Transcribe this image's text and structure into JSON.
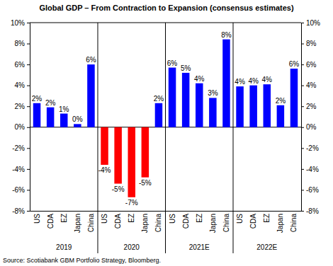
{
  "chart_data": {
    "type": "bar",
    "title": "Global GDP – From Contraction to Expansion (consensus estimates)",
    "source": "Source: Scotiabank GBM Portfolio Strategy, Bloomberg.",
    "categories": [
      "US",
      "CDA",
      "EZ",
      "Japan",
      "China",
      "US",
      "CDA",
      "EZ",
      "Japan",
      "China",
      "US",
      "CDA",
      "EZ",
      "Japan",
      "China",
      "US",
      "CDA",
      "EZ",
      "Japan",
      "China"
    ],
    "category_groups": [
      "2019",
      "2019",
      "2019",
      "2019",
      "2019",
      "2020",
      "2020",
      "2020",
      "2020",
      "2020",
      "2021E",
      "2021E",
      "2021E",
      "2021E",
      "2021E",
      "2022E",
      "2022E",
      "2022E",
      "2022E",
      "2022E"
    ],
    "values": [
      2.3,
      1.9,
      1.3,
      0.3,
      6.0,
      -3.6,
      -5.4,
      -6.7,
      -4.8,
      2.3,
      5.7,
      5.2,
      4.2,
      2.8,
      8.4,
      3.9,
      4.0,
      4.1,
      2.1,
      5.6
    ],
    "value_labels": [
      "2%",
      "2%",
      "1%",
      "0%",
      "6%",
      "-4%",
      "-5%",
      "-7%",
      "-5%",
      "2%",
      "6%",
      "5%",
      "4%",
      "3%",
      "8%",
      "4%",
      "4%",
      "4%",
      "2%",
      "6%"
    ],
    "colors": [
      "#0000ff",
      "#0000ff",
      "#0000ff",
      "#0000ff",
      "#0000ff",
      "#ff0000",
      "#ff0000",
      "#ff0000",
      "#ff0000",
      "#0000ff",
      "#0000ff",
      "#0000ff",
      "#0000ff",
      "#0000ff",
      "#0000ff",
      "#0000ff",
      "#0000ff",
      "#0000ff",
      "#0000ff",
      "#0000ff"
    ],
    "ylim": [
      -8,
      10
    ],
    "yticks": [
      {
        "value": -8,
        "label": "-8%"
      },
      {
        "value": -6,
        "label": "-6%"
      },
      {
        "value": -4,
        "label": "-4%"
      },
      {
        "value": -2,
        "label": "-2%"
      },
      {
        "value": 0,
        "label": "0%"
      },
      {
        "value": 2,
        "label": "2%"
      },
      {
        "value": 4,
        "label": "4%"
      },
      {
        "value": 6,
        "label": "6%"
      },
      {
        "value": 8,
        "label": "8%"
      },
      {
        "value": 10,
        "label": "10%"
      }
    ],
    "data_labels": true,
    "grid": false
  }
}
